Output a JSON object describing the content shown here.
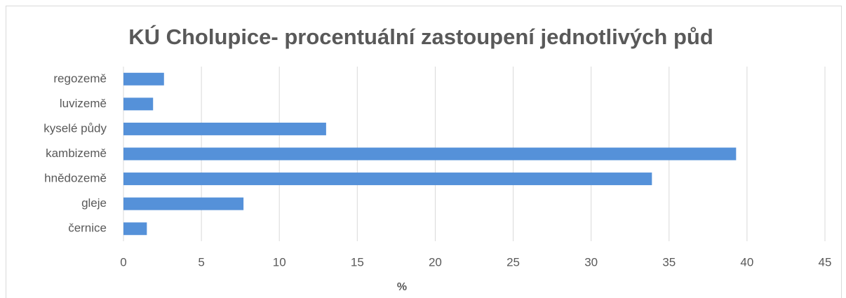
{
  "chart_data": {
    "type": "bar",
    "orientation": "horizontal",
    "title": "KÚ Cholupice- procentuální zastoupení jednotlivých půd",
    "xlabel": "%",
    "categories": [
      "regozemě",
      "luvizemě",
      "kyselé půdy",
      "kambizemě",
      "hnědozemě",
      "gleje",
      "černice"
    ],
    "values": [
      2.6,
      1.9,
      13.0,
      39.3,
      33.9,
      7.7,
      1.5
    ],
    "color": "#5591d9",
    "xlim": [
      0,
      45
    ],
    "xticks": [
      0,
      5,
      10,
      15,
      20,
      25,
      30,
      35,
      40,
      45
    ],
    "grid": true
  }
}
